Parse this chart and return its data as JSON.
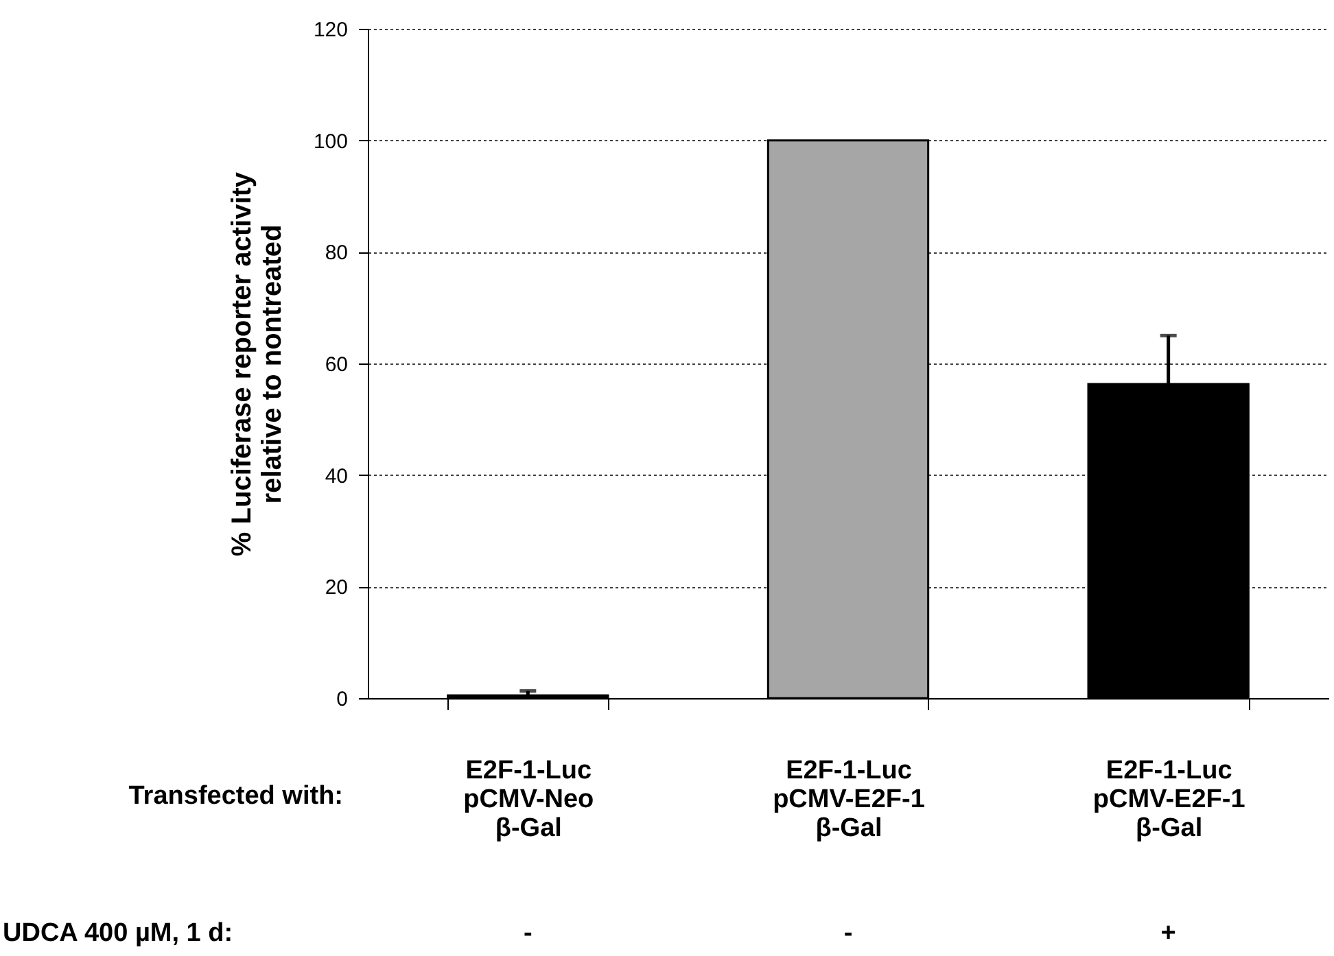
{
  "chart_data": {
    "type": "bar",
    "ylabel": "% Luciferase reporter activity\nrelative to nontreated",
    "categories": [
      "E2F-1-Luc\npCMV-Neo\nβ-Gal",
      "E2F-1-Luc\npCMV-E2F-1\nβ-Gal",
      "E2F-1-Luc\npCMV-E2F-1\nβ-Gal "
    ],
    "values": [
      0.5,
      100,
      56.3
    ],
    "colors": [
      "#000000",
      "#a6a6a6",
      "#000000"
    ],
    "errors": [
      [
        0.5,
        1.3
      ],
      null,
      [
        56.3,
        65
      ]
    ],
    "ylim": [
      0,
      120
    ],
    "yticks": [
      0,
      20,
      40,
      60,
      80,
      100,
      120
    ],
    "grid": "y",
    "annotations": [
      "Transfected with:",
      "UDCA 400 µM, 1 d:",
      "-",
      "-",
      "+"
    ]
  }
}
